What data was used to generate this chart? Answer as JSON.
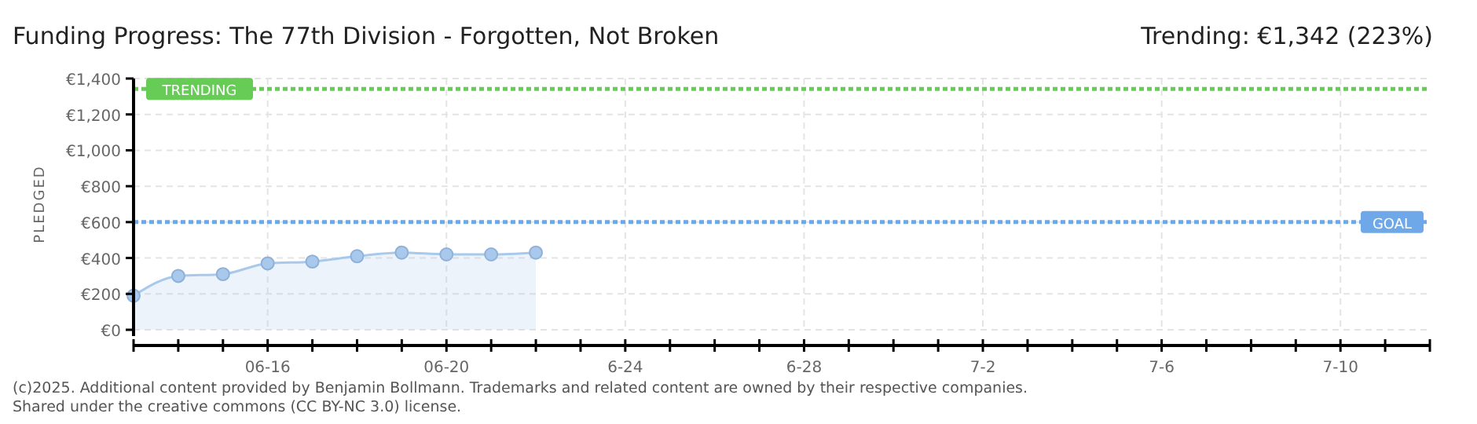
{
  "chart_data": {
    "type": "area",
    "title": "Funding Progress: The 77th Division - Forgotten, Not Broken",
    "subtitle": "Trending:  €1,342 (223%)",
    "ylabel": "PLEDGED",
    "x": [
      "2025-06-13",
      "2025-06-14",
      "2025-06-15",
      "2025-06-16",
      "2025-06-17",
      "2025-06-18",
      "2025-06-19",
      "2025-06-20",
      "2025-06-21",
      "2025-06-22"
    ],
    "series": [
      {
        "color": "#a9c9ec",
        "values": [
          190,
          300,
          310,
          370,
          380,
          410,
          430,
          420,
          420,
          430
        ]
      }
    ],
    "xlim": [
      "2025-06-13",
      "2025-07-12"
    ],
    "xticks": [
      {
        "value": "2025-06-16",
        "label": "06-16"
      },
      {
        "value": "2025-06-20",
        "label": "06-20"
      },
      {
        "value": "2025-06-24",
        "label": "6-24"
      },
      {
        "value": "2025-06-28",
        "label": "6-28"
      },
      {
        "value": "2025-07-02",
        "label": "7-2"
      },
      {
        "value": "2025-07-06",
        "label": "7-6"
      },
      {
        "value": "2025-07-10",
        "label": "7-10"
      }
    ],
    "ylim": [
      0,
      1400
    ],
    "yticks": [
      {
        "value": 0,
        "label": "€0"
      },
      {
        "value": 200,
        "label": "€200"
      },
      {
        "value": 400,
        "label": "€400"
      },
      {
        "value": 600,
        "label": "€600"
      },
      {
        "value": 800,
        "label": "€800"
      },
      {
        "value": 1000,
        "label": "€1,000"
      },
      {
        "value": 1200,
        "label": "€1,200"
      },
      {
        "value": 1400,
        "label": "€1,400"
      }
    ],
    "grid": true,
    "marker": "circle",
    "ref_lines": [
      {
        "axis": "y",
        "value": 1342,
        "label": "TRENDING",
        "color": "#66cc55",
        "line_style": "dotted"
      },
      {
        "axis": "y",
        "value": 600,
        "label": "GOAL",
        "color": "#6fa8e8",
        "line_style": "dotted"
      }
    ],
    "annotations": [
      "(c)2025. Additional content provided by Benjamin Bollmann. Trademarks and related content are owned by their respective companies.",
      "Shared under the creative commons (CC BY-NC 3.0) license."
    ]
  }
}
